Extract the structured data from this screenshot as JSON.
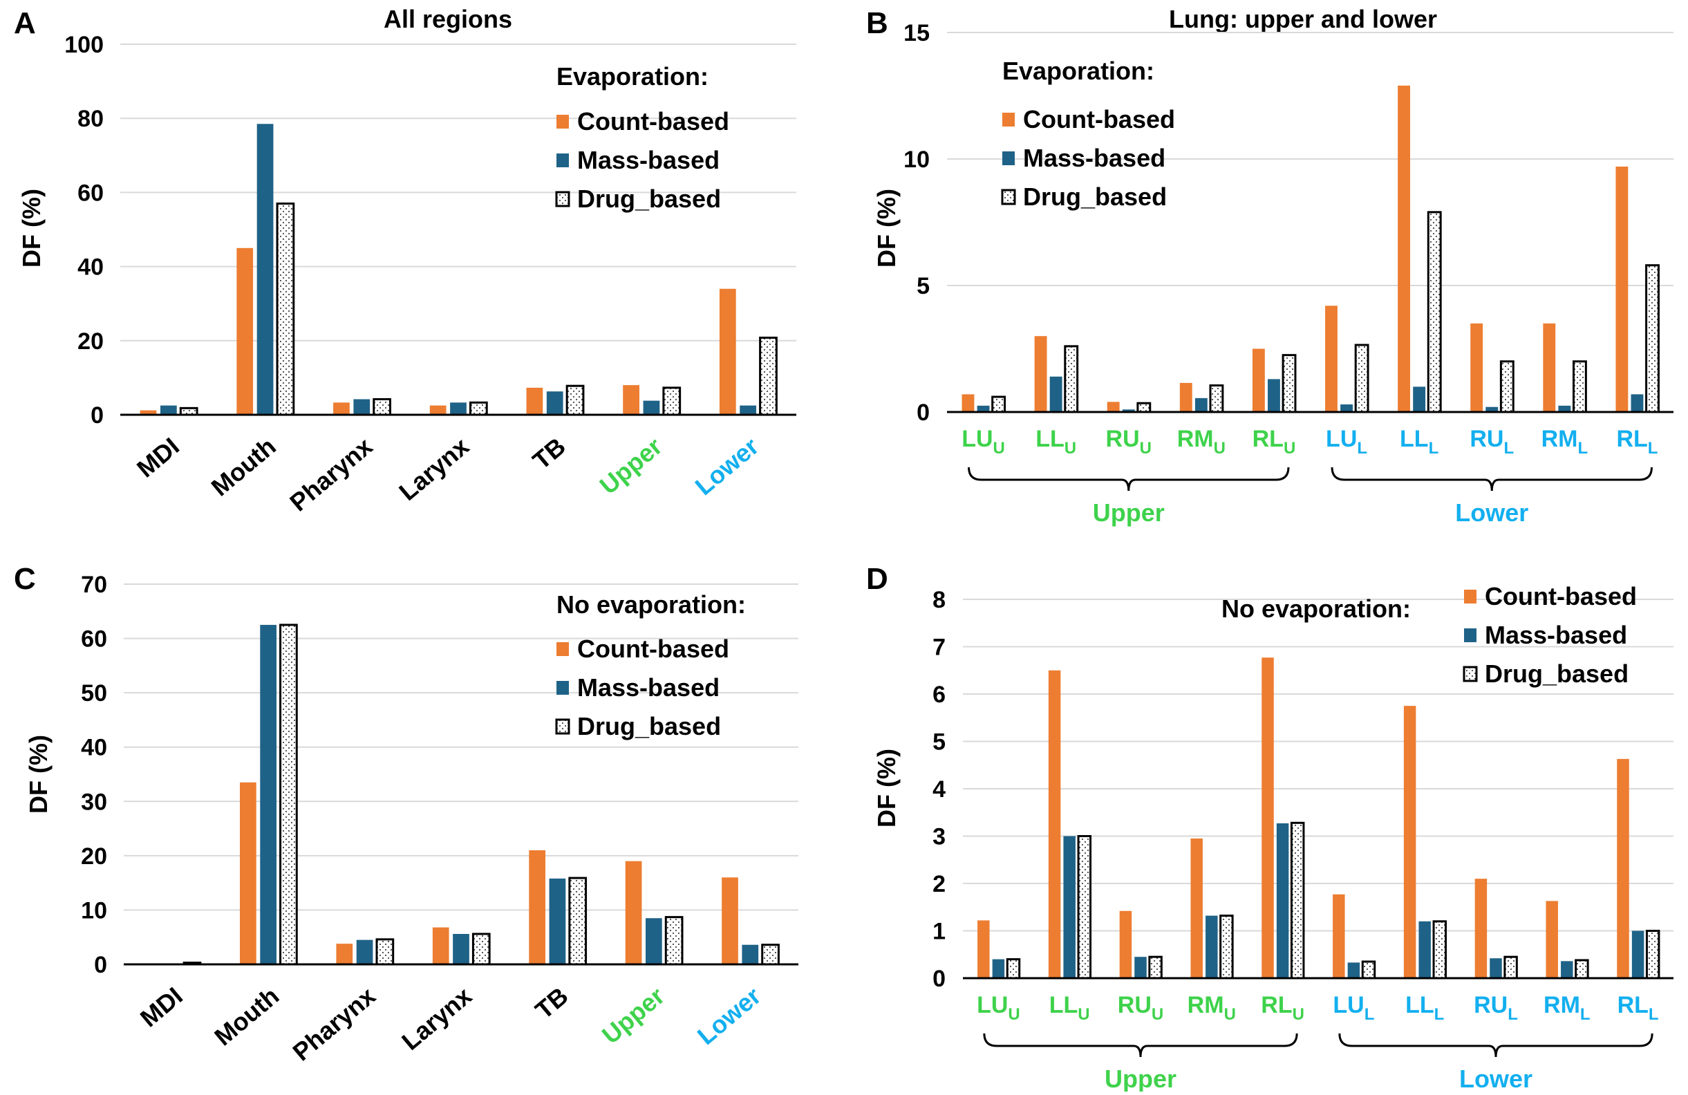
{
  "colors": {
    "count": "#ED7D31",
    "mass": "#1F6287",
    "drug": "#FFFFFF",
    "upper": "#3ED24B",
    "lower": "#13AFEF",
    "grid": "#D9D9D9"
  },
  "chart_data": [
    {
      "panel": "A",
      "type": "bar",
      "title": "All regions",
      "ylabel": "DF (%)",
      "ylim": [
        0,
        100
      ],
      "yticks": [
        0,
        20,
        40,
        60,
        80,
        100
      ],
      "grid": true,
      "legend_title": "Evaporation:",
      "legend_placement": "top-right",
      "categories": [
        {
          "main": "MDI"
        },
        {
          "main": "Mouth"
        },
        {
          "main": "Pharynx"
        },
        {
          "main": "Larynx"
        },
        {
          "main": "TB"
        },
        {
          "main": "Upper",
          "color": "upper"
        },
        {
          "main": "Lower",
          "color": "lower"
        }
      ],
      "series": [
        {
          "name": "Count-based",
          "values": [
            1.2,
            45,
            3.3,
            2.5,
            7.3,
            8,
            34
          ]
        },
        {
          "name": "Mass-based",
          "values": [
            2.5,
            78.5,
            4.2,
            3.3,
            6.3,
            3.8,
            2.5
          ]
        },
        {
          "name": "Drug_based",
          "values": [
            1.8,
            57,
            4.2,
            3.3,
            7.8,
            7.3,
            20.8
          ]
        }
      ]
    },
    {
      "panel": "B",
      "type": "bar",
      "title": "Lung: upper and lower",
      "ylabel": "DF (%)",
      "ylim": [
        0,
        15
      ],
      "yticks": [
        0,
        5,
        10,
        15
      ],
      "grid": true,
      "legend_title": "Evaporation:",
      "legend_placement": "top-left",
      "categories": [
        {
          "main": "LU",
          "sub": "U",
          "color": "upper"
        },
        {
          "main": "LL",
          "sub": "U",
          "color": "upper"
        },
        {
          "main": "RU",
          "sub": "U",
          "color": "upper"
        },
        {
          "main": "RM",
          "sub": "U",
          "color": "upper"
        },
        {
          "main": "RL",
          "sub": "U",
          "color": "upper"
        },
        {
          "main": "LU",
          "sub": "L",
          "color": "lower"
        },
        {
          "main": "LL",
          "sub": "L",
          "color": "lower"
        },
        {
          "main": "RU",
          "sub": "L",
          "color": "lower"
        },
        {
          "main": "RM",
          "sub": "L",
          "color": "lower"
        },
        {
          "main": "RL",
          "sub": "L",
          "color": "lower"
        }
      ],
      "groups": [
        {
          "label": "Upper",
          "color": "upper"
        },
        {
          "label": "Lower",
          "color": "lower"
        }
      ],
      "series": [
        {
          "name": "Count-based",
          "values": [
            0.7,
            3.0,
            0.4,
            1.15,
            2.5,
            4.2,
            12.9,
            3.5,
            3.5,
            9.7
          ]
        },
        {
          "name": "Mass-based",
          "values": [
            0.25,
            1.4,
            0.1,
            0.55,
            1.3,
            0.3,
            1.0,
            0.2,
            0.25,
            0.7
          ]
        },
        {
          "name": "Drug_based",
          "values": [
            0.6,
            2.6,
            0.35,
            1.05,
            2.25,
            2.65,
            7.9,
            2.0,
            2.0,
            5.8
          ]
        }
      ]
    },
    {
      "panel": "C",
      "type": "bar",
      "title": "",
      "ylabel": "DF (%)",
      "ylim": [
        0,
        70
      ],
      "yticks": [
        0,
        10,
        20,
        30,
        40,
        50,
        60,
        70
      ],
      "grid": true,
      "legend_title": "No evaporation:",
      "legend_placement": "top-right",
      "categories": [
        {
          "main": "MDI"
        },
        {
          "main": "Mouth"
        },
        {
          "main": "Pharynx"
        },
        {
          "main": "Larynx"
        },
        {
          "main": "TB"
        },
        {
          "main": "Upper",
          "color": "upper"
        },
        {
          "main": "Lower",
          "color": "lower"
        }
      ],
      "series": [
        {
          "name": "Count-based",
          "values": [
            0,
            33.5,
            3.8,
            6.8,
            21,
            19,
            16
          ]
        },
        {
          "name": "Mass-based",
          "values": [
            0.1,
            62.5,
            4.5,
            5.6,
            15.8,
            8.5,
            3.6
          ]
        },
        {
          "name": "Drug_based",
          "values": [
            0.3,
            62.5,
            4.6,
            5.6,
            15.9,
            8.7,
            3.6
          ]
        }
      ]
    },
    {
      "panel": "D",
      "type": "bar",
      "title": "",
      "ylabel": "DF (%)",
      "ylim": [
        0,
        8
      ],
      "yticks": [
        0,
        1,
        2,
        3,
        4,
        5,
        6,
        7,
        8
      ],
      "grid": true,
      "legend_title": "No evaporation:",
      "legend_placement": "top-right",
      "categories": [
        {
          "main": "LU",
          "sub": "U",
          "color": "upper"
        },
        {
          "main": "LL",
          "sub": "U",
          "color": "upper"
        },
        {
          "main": "RU",
          "sub": "U",
          "color": "upper"
        },
        {
          "main": "RM",
          "sub": "U",
          "color": "upper"
        },
        {
          "main": "RL",
          "sub": "U",
          "color": "upper"
        },
        {
          "main": "LU",
          "sub": "L",
          "color": "lower"
        },
        {
          "main": "LL",
          "sub": "L",
          "color": "lower"
        },
        {
          "main": "RU",
          "sub": "L",
          "color": "lower"
        },
        {
          "main": "RM",
          "sub": "L",
          "color": "lower"
        },
        {
          "main": "RL",
          "sub": "L",
          "color": "lower"
        }
      ],
      "groups": [
        {
          "label": "Upper",
          "color": "upper"
        },
        {
          "label": "Lower",
          "color": "lower"
        }
      ],
      "series": [
        {
          "name": "Count-based",
          "values": [
            1.22,
            6.5,
            1.42,
            2.95,
            6.77,
            1.77,
            5.75,
            2.1,
            1.63,
            4.63
          ]
        },
        {
          "name": "Mass-based",
          "values": [
            0.4,
            3.0,
            0.45,
            1.32,
            3.27,
            0.33,
            1.2,
            0.42,
            0.36,
            1.0
          ]
        },
        {
          "name": "Drug_based",
          "values": [
            0.4,
            3.0,
            0.45,
            1.32,
            3.28,
            0.35,
            1.2,
            0.45,
            0.38,
            1.0
          ]
        }
      ]
    }
  ]
}
